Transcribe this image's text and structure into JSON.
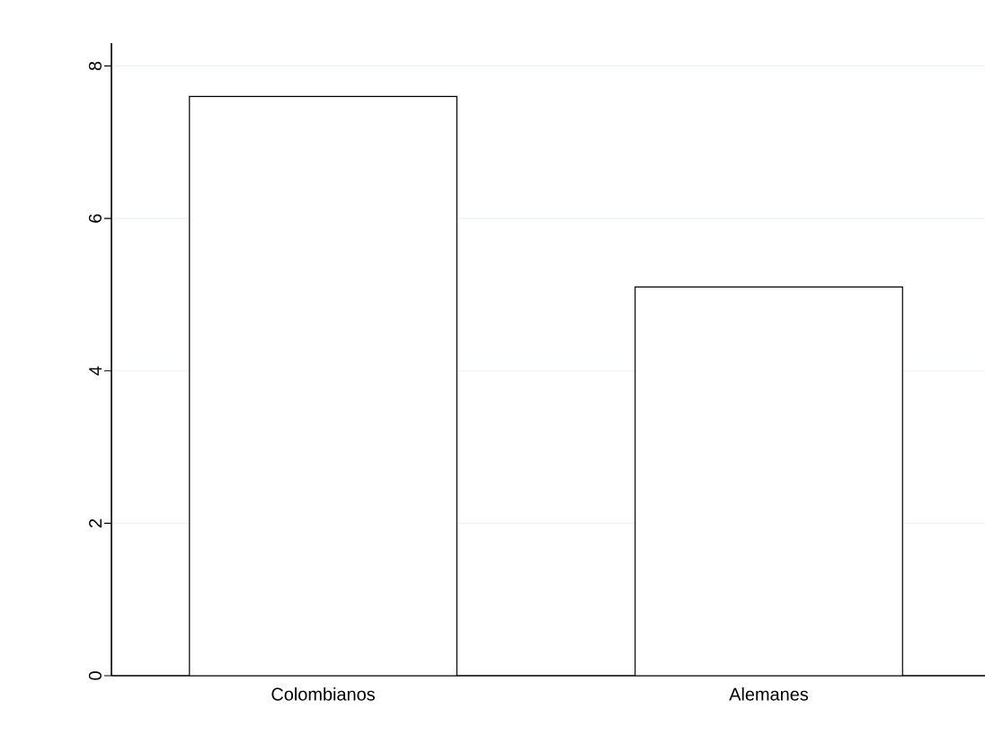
{
  "chart_data": {
    "type": "bar",
    "categories": [
      "Colombianos",
      "Alemanes"
    ],
    "values": [
      7.6,
      5.1
    ],
    "color": "#ffffff",
    "ylim": [
      0,
      8.3
    ],
    "yticks": [
      0,
      2,
      4,
      6,
      8
    ],
    "grid": "y"
  }
}
